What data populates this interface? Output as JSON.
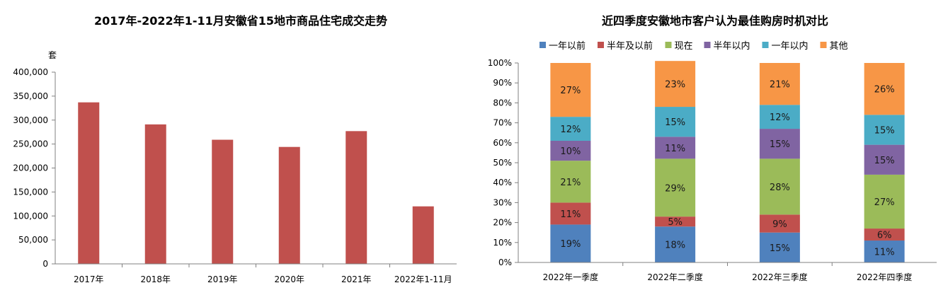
{
  "colors": {
    "bar": "#C0504D",
    "axis": "#808080",
    "grid": "#d9d9d9"
  },
  "chart_data": [
    {
      "type": "bar",
      "title": "2017年-2022年1-11月安徽省15地市商品住宅成交走势",
      "ylabel": "套",
      "categories": [
        "2017年",
        "2018年",
        "2019年",
        "2020年",
        "2021年",
        "2022年1-11月"
      ],
      "values": [
        337000,
        291000,
        259000,
        244000,
        277000,
        120000
      ],
      "ylim": [
        0,
        400000
      ],
      "yticks": [
        0,
        50000,
        100000,
        150000,
        200000,
        250000,
        300000,
        350000,
        400000
      ],
      "ytick_labels": [
        "0",
        "50,000",
        "100,000",
        "150,000",
        "200,000",
        "250,000",
        "300,000",
        "350,000",
        "400,000"
      ],
      "grid": false
    },
    {
      "type": "bar",
      "stacked": true,
      "title": "近四季度安徽地市客户认为最佳购房时机对比",
      "categories": [
        "2022年一季度",
        "2022年二季度",
        "2022年三季度",
        "2022年四季度"
      ],
      "ylim": [
        0,
        100
      ],
      "yticks": [
        0,
        10,
        20,
        30,
        40,
        50,
        60,
        70,
        80,
        90,
        100
      ],
      "ytick_labels": [
        "0%",
        "10%",
        "20%",
        "30%",
        "40%",
        "50%",
        "60%",
        "70%",
        "80%",
        "90%",
        "100%"
      ],
      "legend_position": "top",
      "series": [
        {
          "name": "一年以前",
          "color": "#4F81BD",
          "values": [
            19,
            18,
            15,
            11
          ]
        },
        {
          "name": "半年及以前",
          "color": "#C0504D",
          "values": [
            11,
            5,
            9,
            6
          ]
        },
        {
          "name": "现在",
          "color": "#9BBB59",
          "values": [
            21,
            29,
            28,
            27
          ]
        },
        {
          "name": "半年以内",
          "color": "#8064A2",
          "values": [
            10,
            11,
            15,
            15
          ]
        },
        {
          "name": "一年以内",
          "color": "#4BACC6",
          "values": [
            12,
            15,
            12,
            15
          ]
        },
        {
          "name": "其他",
          "color": "#F79646",
          "values": [
            27,
            23,
            21,
            26
          ]
        }
      ]
    }
  ]
}
